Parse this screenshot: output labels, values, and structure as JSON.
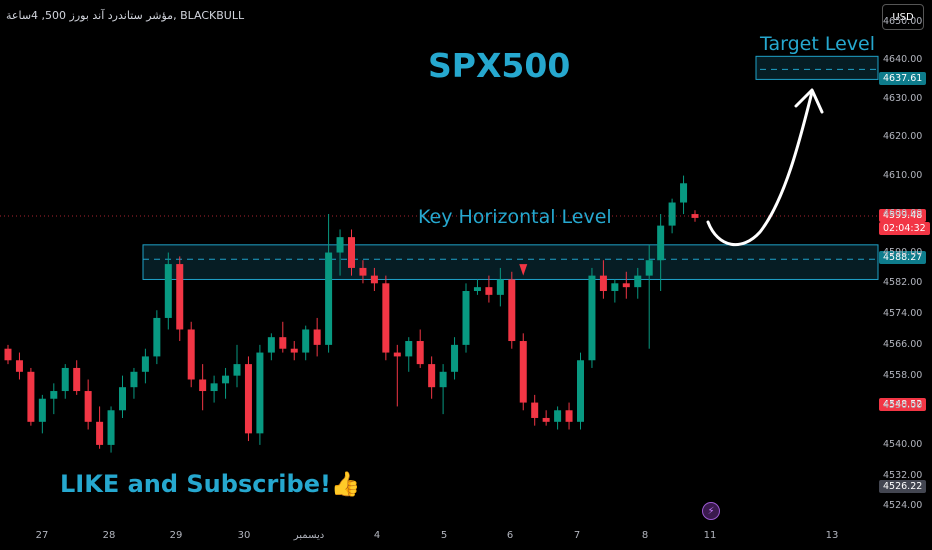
{
  "header": {
    "symbol_text": "مؤشر ستاندرد آند بورز 500, 4ساعة, BLACKBULL",
    "currency": "USD"
  },
  "annotations": {
    "title": "SPX500",
    "key_level_label": "Key Horizontal Level",
    "target_label": "Target Level",
    "cta": "LIKE and Subscribe!👍"
  },
  "price_tags": {
    "target": "4637.61",
    "current": "4599.48",
    "countdown": "02:04:32",
    "key_level": "4588.27",
    "low_marker": "4548.52",
    "bottom": "4526.22"
  },
  "colors": {
    "up": "#089981",
    "down": "#f23645",
    "accent": "#26a8cf",
    "zone_border": "#1fa2c9"
  },
  "chart_data": {
    "type": "candlestick",
    "title": "SPX500",
    "y_axis_ticks": [
      "4650.00",
      "4640.00",
      "4630.00",
      "4620.00",
      "4610.00",
      "4600.00",
      "4590.00",
      "4582.00",
      "4574.00",
      "4566.00",
      "4558.00",
      "4550.00",
      "4540.00",
      "4532.00",
      "4524.00"
    ],
    "ylim": [
      4521,
      4652
    ],
    "x_labels": [
      "27",
      "28",
      "29",
      "30",
      "ديسمبر",
      "4",
      "5",
      "6",
      "7",
      "8",
      "11",
      "13"
    ],
    "key_zone": {
      "low": 4583,
      "high": 4592,
      "level": 4588.27
    },
    "target_zone": {
      "low": 4635,
      "high": 4641,
      "level": 4637.61
    },
    "current_price": 4599.48,
    "candles": [
      [
        4565,
        4566,
        4561,
        4562
      ],
      [
        4562,
        4564,
        4557,
        4559
      ],
      [
        4559,
        4560,
        4545,
        4546
      ],
      [
        4546,
        4553,
        4543,
        4552
      ],
      [
        4552,
        4556,
        4548,
        4554
      ],
      [
        4554,
        4561,
        4552,
        4560
      ],
      [
        4560,
        4562,
        4553,
        4554
      ],
      [
        4554,
        4557,
        4544,
        4546
      ],
      [
        4546,
        4550,
        4539,
        4540
      ],
      [
        4540,
        4550,
        4538,
        4549
      ],
      [
        4549,
        4558,
        4547,
        4555
      ],
      [
        4555,
        4560,
        4552,
        4559
      ],
      [
        4559,
        4565,
        4556,
        4563
      ],
      [
        4563,
        4575,
        4561,
        4573
      ],
      [
        4573,
        4590,
        4570,
        4587
      ],
      [
        4587,
        4589,
        4567,
        4570
      ],
      [
        4570,
        4572,
        4555,
        4557
      ],
      [
        4557,
        4561,
        4549,
        4554
      ],
      [
        4554,
        4558,
        4551,
        4556
      ],
      [
        4556,
        4560,
        4552,
        4558
      ],
      [
        4558,
        4566,
        4555,
        4561
      ],
      [
        4561,
        4563,
        4541,
        4543
      ],
      [
        4543,
        4566,
        4540,
        4564
      ],
      [
        4564,
        4569,
        4562,
        4568
      ],
      [
        4568,
        4572,
        4564,
        4565
      ],
      [
        4565,
        4567,
        4562,
        4564
      ],
      [
        4564,
        4571,
        4562,
        4570
      ],
      [
        4570,
        4573,
        4563,
        4566
      ],
      [
        4566,
        4600,
        4564,
        4590
      ],
      [
        4590,
        4596,
        4584,
        4594
      ],
      [
        4594,
        4596,
        4584,
        4586
      ],
      [
        4586,
        4588,
        4582,
        4584
      ],
      [
        4584,
        4586,
        4580,
        4582
      ],
      [
        4582,
        4584,
        4562,
        4564
      ],
      [
        4564,
        4566,
        4550,
        4563
      ],
      [
        4563,
        4568,
        4559,
        4567
      ],
      [
        4567,
        4570,
        4560,
        4561
      ],
      [
        4561,
        4563,
        4552,
        4555
      ],
      [
        4555,
        4561,
        4548,
        4559
      ],
      [
        4559,
        4568,
        4557,
        4566
      ],
      [
        4566,
        4582,
        4564,
        4580
      ],
      [
        4580,
        4583,
        4579,
        4581
      ],
      [
        4581,
        4584,
        4577,
        4579
      ],
      [
        4579,
        4586,
        4576,
        4583
      ],
      [
        4583,
        4585,
        4565,
        4567
      ],
      [
        4567,
        4569,
        4549,
        4551
      ],
      [
        4551,
        4553,
        4545,
        4547
      ],
      [
        4547,
        4549,
        4545,
        4546
      ],
      [
        4546,
        4550,
        4544,
        4549
      ],
      [
        4549,
        4551,
        4544,
        4546
      ],
      [
        4546,
        4564,
        4544,
        4562
      ],
      [
        4562,
        4586,
        4560,
        4584
      ],
      [
        4584,
        4588,
        4578,
        4580
      ],
      [
        4580,
        4583,
        4577,
        4582
      ],
      [
        4582,
        4585,
        4578,
        4581
      ],
      [
        4581,
        4586,
        4578,
        4584
      ],
      [
        4584,
        4592,
        4565,
        4588
      ],
      [
        4588,
        4600,
        4580,
        4597
      ],
      [
        4597,
        4604,
        4595,
        4603
      ],
      [
        4603,
        4610,
        4600,
        4608
      ],
      [
        4600,
        4601,
        4598,
        4599
      ]
    ]
  }
}
